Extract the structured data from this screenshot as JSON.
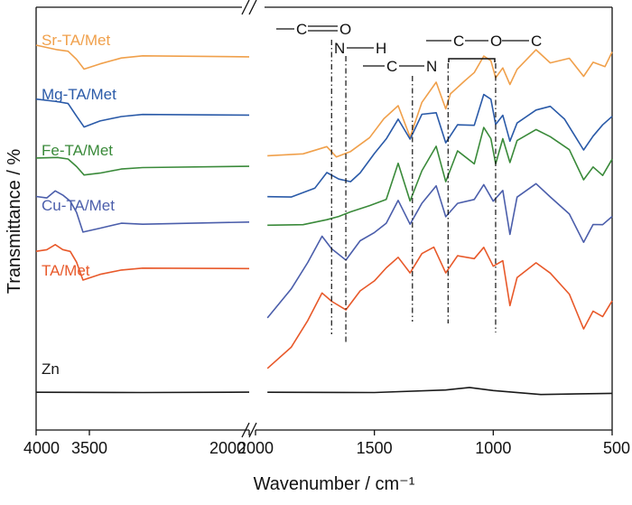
{
  "chart_data": {
    "type": "line",
    "title": "",
    "xlabel": "Wavenumber / cm⁻¹",
    "ylabel": "Transmittance / %",
    "x_axis_breaks": [
      {
        "panel": "left",
        "xlim": [
          4000,
          2000
        ],
        "ticks": [
          4000,
          3500
        ]
      },
      {
        "panel": "right",
        "xlim": [
          2000,
          500
        ],
        "ticks": [
          2000,
          1500,
          1000,
          500
        ]
      }
    ],
    "x_tick_labels": [
      "4000",
      "3500",
      "2000",
      "1500",
      "1000",
      "500"
    ],
    "grid": false,
    "legend": "series labels placed at left, above each trace",
    "series": [
      {
        "name": "Sr-TA/Met",
        "color": "#f0a04b",
        "points": [
          [
            4000,
            0.93
          ],
          [
            3800,
            0.91
          ],
          [
            3700,
            0.9
          ],
          [
            3620,
            0.86
          ],
          [
            3550,
            0.82
          ],
          [
            3400,
            0.84
          ],
          [
            3200,
            0.86
          ],
          [
            3000,
            0.87
          ],
          [
            2000,
            0.87
          ],
          [
            1950,
            0.42
          ],
          [
            1800,
            0.43
          ],
          [
            1700,
            0.46
          ],
          [
            1660,
            0.41
          ],
          [
            1600,
            0.44
          ],
          [
            1520,
            0.5
          ],
          [
            1460,
            0.58
          ],
          [
            1400,
            0.64
          ],
          [
            1350,
            0.5
          ],
          [
            1300,
            0.66
          ],
          [
            1240,
            0.75
          ],
          [
            1200,
            0.63
          ],
          [
            1180,
            0.7
          ],
          [
            1120,
            0.76
          ],
          [
            1080,
            0.8
          ],
          [
            1040,
            0.88
          ],
          [
            1010,
            0.86
          ],
          [
            990,
            0.78
          ],
          [
            960,
            0.82
          ],
          [
            930,
            0.75
          ],
          [
            900,
            0.82
          ],
          [
            820,
            0.9
          ],
          [
            760,
            0.84
          ],
          [
            680,
            0.86
          ],
          [
            620,
            0.78
          ],
          [
            580,
            0.84
          ],
          [
            530,
            0.82
          ],
          [
            500,
            0.89
          ]
        ]
      },
      {
        "name": "Mg-TA/Met",
        "color": "#2a5aa8",
        "points": [
          [
            4000,
            0.68
          ],
          [
            3800,
            0.67
          ],
          [
            3700,
            0.66
          ],
          [
            3620,
            0.6
          ],
          [
            3550,
            0.55
          ],
          [
            3400,
            0.57
          ],
          [
            3200,
            0.59
          ],
          [
            3000,
            0.6
          ],
          [
            2000,
            0.6
          ],
          [
            1950,
            0.23
          ],
          [
            1850,
            0.23
          ],
          [
            1750,
            0.27
          ],
          [
            1700,
            0.34
          ],
          [
            1650,
            0.31
          ],
          [
            1600,
            0.29
          ],
          [
            1560,
            0.33
          ],
          [
            1500,
            0.42
          ],
          [
            1450,
            0.49
          ],
          [
            1400,
            0.58
          ],
          [
            1350,
            0.49
          ],
          [
            1300,
            0.6
          ],
          [
            1240,
            0.62
          ],
          [
            1200,
            0.48
          ],
          [
            1150,
            0.56
          ],
          [
            1080,
            0.56
          ],
          [
            1040,
            0.7
          ],
          [
            1010,
            0.68
          ],
          [
            990,
            0.56
          ],
          [
            960,
            0.6
          ],
          [
            930,
            0.48
          ],
          [
            900,
            0.56
          ],
          [
            820,
            0.62
          ],
          [
            760,
            0.64
          ],
          [
            700,
            0.58
          ],
          [
            620,
            0.44
          ],
          [
            580,
            0.5
          ],
          [
            540,
            0.56
          ],
          [
            500,
            0.6
          ]
        ]
      },
      {
        "name": "Fe-TA/Met",
        "color": "#3a8a3a",
        "points": [
          [
            4000,
            0.41
          ],
          [
            3800,
            0.41
          ],
          [
            3700,
            0.4
          ],
          [
            3620,
            0.36
          ],
          [
            3550,
            0.32
          ],
          [
            3400,
            0.33
          ],
          [
            3200,
            0.35
          ],
          [
            3000,
            0.36
          ],
          [
            2000,
            0.36
          ],
          [
            1950,
            0.1
          ],
          [
            1800,
            0.1
          ],
          [
            1700,
            0.12
          ],
          [
            1650,
            0.13
          ],
          [
            1600,
            0.15
          ],
          [
            1520,
            0.18
          ],
          [
            1450,
            0.21
          ],
          [
            1400,
            0.38
          ],
          [
            1350,
            0.2
          ],
          [
            1300,
            0.34
          ],
          [
            1240,
            0.46
          ],
          [
            1200,
            0.3
          ],
          [
            1150,
            0.44
          ],
          [
            1080,
            0.38
          ],
          [
            1040,
            0.55
          ],
          [
            1010,
            0.5
          ],
          [
            990,
            0.38
          ],
          [
            960,
            0.5
          ],
          [
            930,
            0.38
          ],
          [
            900,
            0.48
          ],
          [
            820,
            0.53
          ],
          [
            760,
            0.5
          ],
          [
            680,
            0.44
          ],
          [
            620,
            0.3
          ],
          [
            580,
            0.36
          ],
          [
            540,
            0.33
          ],
          [
            500,
            0.4
          ]
        ]
      },
      {
        "name": "Cu-TA/Met",
        "color": "#4b5eab",
        "points": [
          [
            4000,
            0.23
          ],
          [
            3900,
            0.22
          ],
          [
            3820,
            0.25
          ],
          [
            3750,
            0.23
          ],
          [
            3680,
            0.2
          ],
          [
            3620,
            0.15
          ],
          [
            3560,
            0.06
          ],
          [
            3400,
            0.08
          ],
          [
            3200,
            0.1
          ],
          [
            3000,
            0.1
          ],
          [
            2000,
            0.11
          ],
          [
            1950,
            -0.33
          ],
          [
            1850,
            -0.2
          ],
          [
            1780,
            -0.08
          ],
          [
            1720,
            0.04
          ],
          [
            1680,
            -0.02
          ],
          [
            1620,
            -0.07
          ],
          [
            1560,
            0.02
          ],
          [
            1500,
            0.06
          ],
          [
            1450,
            0.1
          ],
          [
            1400,
            0.21
          ],
          [
            1350,
            0.1
          ],
          [
            1300,
            0.2
          ],
          [
            1240,
            0.28
          ],
          [
            1200,
            0.14
          ],
          [
            1150,
            0.2
          ],
          [
            1080,
            0.22
          ],
          [
            1040,
            0.28
          ],
          [
            1000,
            0.2
          ],
          [
            960,
            0.25
          ],
          [
            930,
            0.05
          ],
          [
            900,
            0.22
          ],
          [
            820,
            0.28
          ],
          [
            760,
            0.22
          ],
          [
            680,
            0.15
          ],
          [
            620,
            0.02
          ],
          [
            580,
            0.1
          ],
          [
            540,
            0.1
          ],
          [
            500,
            0.14
          ]
        ]
      },
      {
        "name": "TA/Met",
        "color": "#e8592a",
        "points": [
          [
            4000,
            -0.03
          ],
          [
            3900,
            -0.02
          ],
          [
            3820,
            0.0
          ],
          [
            3750,
            -0.02
          ],
          [
            3680,
            -0.03
          ],
          [
            3620,
            -0.08
          ],
          [
            3560,
            -0.16
          ],
          [
            3400,
            -0.13
          ],
          [
            3200,
            -0.11
          ],
          [
            3000,
            -0.1
          ],
          [
            2000,
            -0.1
          ],
          [
            1950,
            -0.57
          ],
          [
            1850,
            -0.47
          ],
          [
            1780,
            -0.35
          ],
          [
            1720,
            -0.22
          ],
          [
            1680,
            -0.26
          ],
          [
            1620,
            -0.3
          ],
          [
            1560,
            -0.21
          ],
          [
            1500,
            -0.16
          ],
          [
            1450,
            -0.1
          ],
          [
            1400,
            -0.05
          ],
          [
            1350,
            -0.12
          ],
          [
            1300,
            -0.03
          ],
          [
            1250,
            0.0
          ],
          [
            1200,
            -0.12
          ],
          [
            1150,
            -0.05
          ],
          [
            1080,
            -0.06
          ],
          [
            1040,
            -0.01
          ],
          [
            1000,
            -0.1
          ],
          [
            960,
            -0.07
          ],
          [
            930,
            -0.28
          ],
          [
            900,
            -0.15
          ],
          [
            820,
            -0.08
          ],
          [
            760,
            -0.12
          ],
          [
            680,
            -0.22
          ],
          [
            620,
            -0.38
          ],
          [
            580,
            -0.3
          ],
          [
            540,
            -0.32
          ],
          [
            500,
            -0.25
          ]
        ]
      },
      {
        "name": "Zn",
        "color": "#1a1a1a",
        "points": [
          [
            4000,
            -0.68
          ],
          [
            3000,
            -0.68
          ],
          [
            2000,
            -0.68
          ],
          [
            1950,
            -0.68
          ],
          [
            1500,
            -0.68
          ],
          [
            1200,
            -0.67
          ],
          [
            1100,
            -0.66
          ],
          [
            1000,
            -0.67
          ],
          [
            800,
            -0.68
          ],
          [
            500,
            -0.68
          ]
        ]
      }
    ],
    "annotations": [
      {
        "label": "C=O",
        "x": 1680
      },
      {
        "label": "N—H",
        "x": 1620
      },
      {
        "label": "—C—N",
        "x": 1340
      },
      {
        "label": "—C—O—C",
        "x_range": [
          1190,
          990
        ]
      }
    ]
  },
  "text": {
    "ylabel": "Transmittance / %",
    "xlabel": "Wavenumber / cm⁻¹",
    "chem_co_c": "C",
    "chem_co_o": "O",
    "chem_nh_n": "N",
    "chem_nh_h": "H",
    "chem_cn_c": "C",
    "chem_cn_n": "N",
    "chem_coc_c1": "C",
    "chem_coc_o": "O",
    "chem_coc_c2": "C"
  }
}
